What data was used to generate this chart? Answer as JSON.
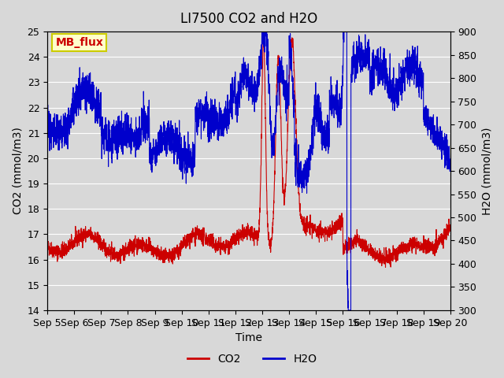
{
  "title": "LI7500 CO2 and H2O",
  "xlabel": "Time",
  "ylabel_left": "CO2 (mmol/m3)",
  "ylabel_right": "H2O (mmol/m3)",
  "ylim_left": [
    14.0,
    25.0
  ],
  "ylim_right": [
    300,
    900
  ],
  "yticks_left": [
    14.0,
    15.0,
    16.0,
    17.0,
    18.0,
    19.0,
    20.0,
    21.0,
    22.0,
    23.0,
    24.0,
    25.0
  ],
  "yticks_right": [
    300,
    350,
    400,
    450,
    500,
    550,
    600,
    650,
    700,
    750,
    800,
    850,
    900
  ],
  "co2_color": "#cc0000",
  "h2o_color": "#0000cc",
  "title_fontsize": 12,
  "axis_fontsize": 10,
  "tick_fontsize": 9,
  "legend_fontsize": 10,
  "annotation_text": "MB_flux",
  "annotation_color": "#cc0000",
  "annotation_bg": "#ffffcc",
  "annotation_border": "#cccc00",
  "n_points": 3000,
  "x_start": 5.0,
  "x_end": 20.0,
  "xtick_positions": [
    5,
    6,
    7,
    8,
    9,
    10,
    11,
    12,
    13,
    14,
    15,
    16,
    17,
    18,
    19,
    20
  ],
  "xtick_labels": [
    "Sep 5",
    "Sep 6",
    "Sep 7",
    "Sep 8",
    "Sep 9",
    "Sep 10",
    "Sep 11",
    "Sep 12",
    "Sep 13",
    "Sep 14",
    "Sep 15",
    "Sep 16",
    "Sep 17",
    "Sep 18",
    "Sep 19",
    "Sep 20"
  ]
}
